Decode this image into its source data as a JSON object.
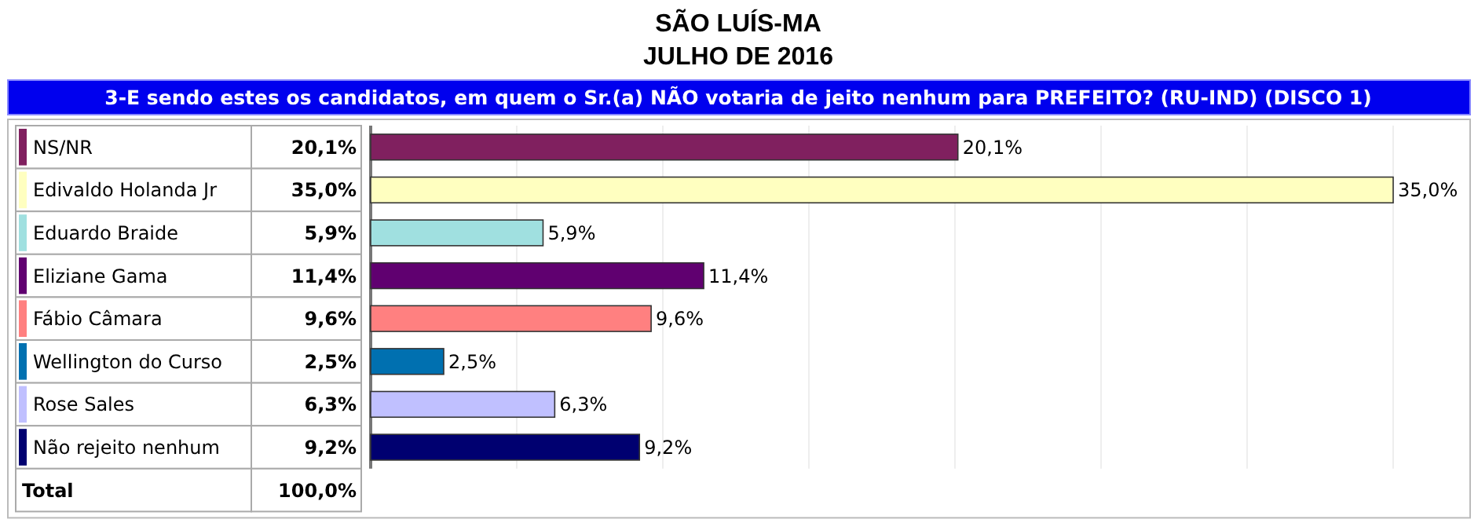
{
  "chart_data": {
    "type": "bar",
    "orientation": "horizontal",
    "title": "SÃO LUÍS-MA",
    "subtitle": "JULHO DE 2016",
    "annotations": [
      "3-E sendo estes os candidatos, em quem o Sr.(a) NÃO votaria de jeito nenhum para PREFEITO? (RU-IND) (DISCO 1)",
      "Total",
      "100,0%"
    ],
    "categories": [
      "NS/NR",
      "Edivaldo Holanda Jr",
      "Eduardo Braide",
      "Eliziane Gama",
      "Fábio Câmara",
      "Wellington do Curso",
      "Rose Sales",
      "Não rejeito nenhum"
    ],
    "values": [
      20.1,
      35.0,
      5.9,
      11.4,
      9.6,
      2.5,
      6.3,
      9.2
    ],
    "value_labels": [
      "20,1%",
      "35,0%",
      "5,9%",
      "11,4%",
      "9,6%",
      "2,5%",
      "6,3%",
      "9,2%"
    ],
    "colors": [
      "#80205f",
      "#ffffc0",
      "#a0e0e0",
      "#600070",
      "#ff8080",
      "#0070b0",
      "#c0c0ff",
      "#000070"
    ],
    "xlim": [
      0,
      35
    ],
    "xticks": [
      {
        "value": 0,
        "label": null
      },
      {
        "value": 5,
        "label": null
      },
      {
        "value": 10,
        "label": null
      },
      {
        "value": 15,
        "label": null
      },
      {
        "value": 20,
        "label": null
      },
      {
        "value": 25,
        "label": null
      },
      {
        "value": 30,
        "label": null
      },
      {
        "value": 35,
        "label": null
      }
    ],
    "grid": "x",
    "data_labels": true
  }
}
